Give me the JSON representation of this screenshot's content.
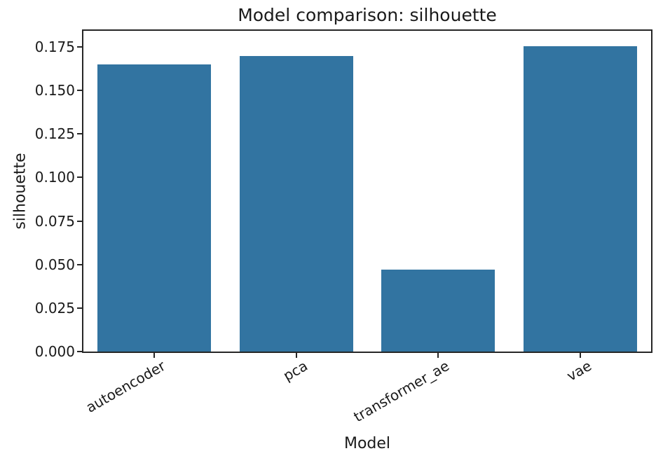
{
  "chart_data": {
    "type": "bar",
    "title": "Model comparison: silhouette",
    "xlabel": "Model",
    "ylabel": "silhouette",
    "categories": [
      "autoencoder",
      "pca",
      "transformer_ae",
      "vae"
    ],
    "values": [
      0.165,
      0.17,
      0.047,
      0.1755
    ],
    "ylim": [
      0,
      0.1843
    ],
    "yticks": [
      0.0,
      0.025,
      0.05,
      0.075,
      0.1,
      0.125,
      0.15,
      0.175
    ],
    "ytick_labels": [
      "0.000",
      "0.025",
      "0.050",
      "0.075",
      "0.100",
      "0.125",
      "0.150",
      "0.175"
    ],
    "bar_color": "#3274a1",
    "bar_width_fraction": 0.8,
    "xtick_rotation_deg": 30,
    "grid": false,
    "legend_position": "none",
    "background_color": "#ffffff",
    "spine_color": "#262626",
    "text_color": "#1a1a1a"
  }
}
